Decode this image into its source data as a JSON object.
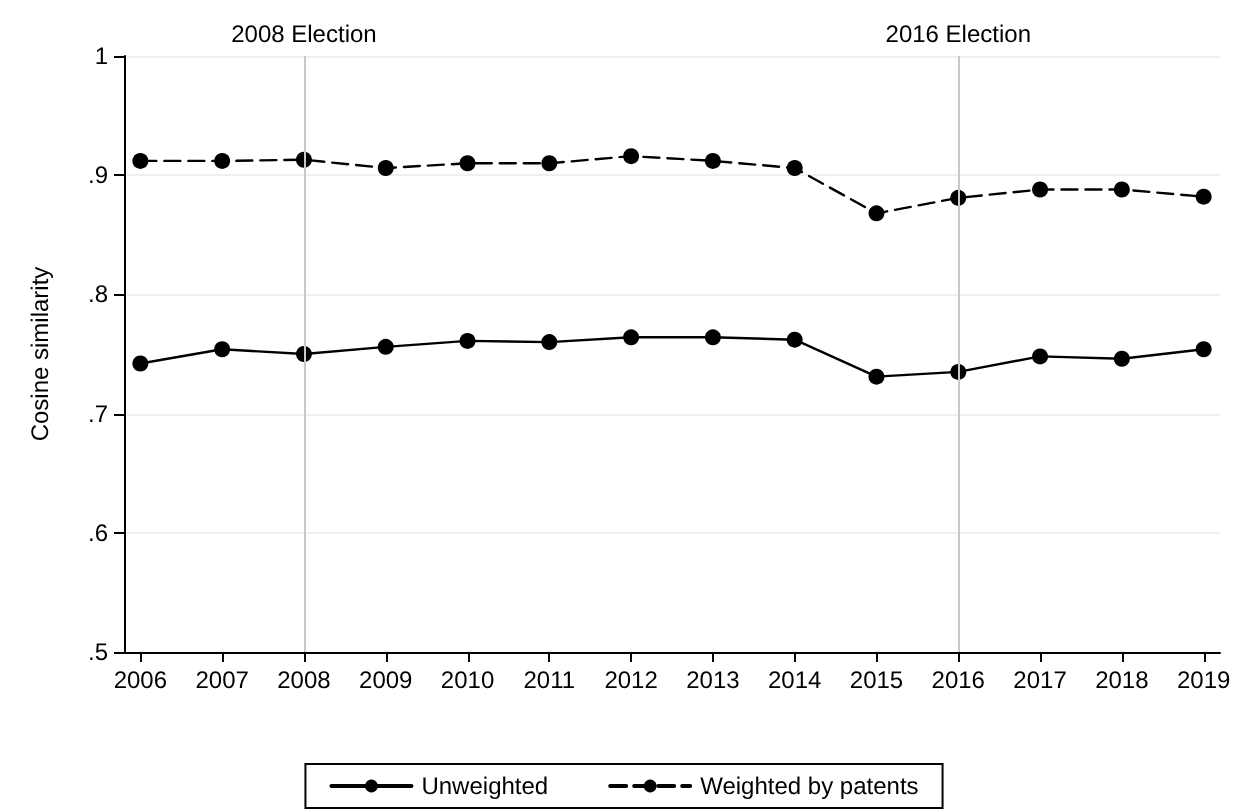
{
  "chart_data": {
    "type": "line",
    "ylabel": "Cosine similarity",
    "x": [
      2006,
      2007,
      2008,
      2009,
      2010,
      2011,
      2012,
      2013,
      2014,
      2015,
      2016,
      2017,
      2018,
      2019
    ],
    "series": [
      {
        "name": "Unweighted",
        "color": "#000000",
        "line_style": "solid",
        "values": [
          0.742,
          0.754,
          0.75,
          0.756,
          0.761,
          0.76,
          0.764,
          0.764,
          0.762,
          0.731,
          0.735,
          0.748,
          0.746,
          0.754
        ]
      },
      {
        "name": "Weighted by patents",
        "color": "#000000",
        "line_style": "dashed",
        "values": [
          0.912,
          0.912,
          0.913,
          0.906,
          0.91,
          0.91,
          0.916,
          0.912,
          0.906,
          0.868,
          0.881,
          0.888,
          0.888,
          0.882
        ]
      }
    ],
    "xlim": [
      2005.8,
      2019.2
    ],
    "xticks": [
      2006,
      2007,
      2008,
      2009,
      2010,
      2011,
      2012,
      2013,
      2014,
      2015,
      2016,
      2017,
      2018,
      2019
    ],
    "ylim": [
      0.5,
      1
    ],
    "yticks": [
      {
        "value": 0.5,
        "label": ".5"
      },
      {
        "value": 0.6,
        "label": ".6"
      },
      {
        "value": 0.7,
        "label": ".7"
      },
      {
        "value": 0.8,
        "label": ".8"
      },
      {
        "value": 0.9,
        "label": ".9"
      },
      {
        "value": 1,
        "label": "1"
      }
    ],
    "ref_lines": [
      {
        "axis": "x",
        "value": 2008,
        "label": "2008 Election",
        "color": "#c8c8c8"
      },
      {
        "axis": "x",
        "value": 2016,
        "label": "2016 Election",
        "color": "#c8c8c8"
      }
    ],
    "grid": "y",
    "legend": "bottom",
    "marker": "circle"
  }
}
